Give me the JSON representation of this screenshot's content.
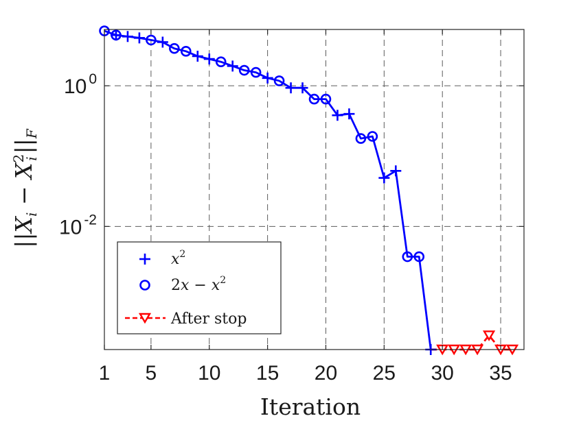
{
  "chart_data": {
    "type": "line",
    "xlabel": "Iteration",
    "ylabel": "||X_i − X_i^2||_F",
    "yscale": "log",
    "xlim": [
      1,
      37
    ],
    "ylim_log10": [
      -3.75,
      0.8
    ],
    "grid": true,
    "x_ticks": [
      1,
      5,
      10,
      15,
      20,
      25,
      30,
      35
    ],
    "x_tick_labels": [
      "1",
      "5",
      "10",
      "15",
      "20",
      "25",
      "30",
      "35"
    ],
    "y_ticks_log10": [
      0,
      -2
    ],
    "y_tick_labels": [
      {
        "base": "10",
        "exp": "0"
      },
      {
        "base": "10",
        "exp": "-2"
      }
    ],
    "legend_position": "bottom-left",
    "series": [
      {
        "name": "x^2",
        "marker": "plus",
        "color": "#0000ff",
        "x": [
          2,
          3,
          4,
          6,
          9,
          10,
          12,
          15,
          17,
          18,
          21,
          22,
          25,
          26,
          29
        ],
        "log10_y": [
          0.72,
          0.7,
          0.68,
          0.62,
          0.42,
          0.38,
          0.28,
          0.11,
          -0.03,
          -0.03,
          -0.42,
          -0.4,
          -1.31,
          -1.21,
          -3.75
        ]
      },
      {
        "name": "2x − x^2",
        "marker": "circle",
        "color": "#0000ff",
        "x": [
          1,
          2,
          5,
          7,
          8,
          11,
          13,
          14,
          16,
          19,
          20,
          23,
          24,
          27,
          28
        ],
        "log10_y": [
          0.78,
          0.72,
          0.65,
          0.53,
          0.49,
          0.34,
          0.22,
          0.19,
          0.07,
          -0.19,
          -0.19,
          -0.75,
          -0.72,
          -2.43,
          -2.43
        ]
      },
      {
        "name": "After stop",
        "marker": "triangle-down",
        "color": "#ff0000",
        "dashed": true,
        "x": [
          30,
          31,
          32,
          33,
          34,
          35,
          36
        ],
        "log10_y": [
          -3.75,
          -3.75,
          -3.75,
          -3.75,
          -3.55,
          -3.75,
          -3.75
        ]
      }
    ],
    "line_path_log10": {
      "x": [
        1,
        2,
        3,
        4,
        5,
        6,
        7,
        8,
        9,
        10,
        11,
        12,
        13,
        14,
        15,
        16,
        17,
        18,
        19,
        20,
        21,
        22,
        23,
        24,
        25,
        26,
        27,
        28,
        29
      ],
      "y": [
        0.78,
        0.72,
        0.7,
        0.68,
        0.65,
        0.62,
        0.53,
        0.49,
        0.42,
        0.38,
        0.34,
        0.28,
        0.22,
        0.19,
        0.11,
        0.07,
        -0.03,
        -0.03,
        -0.19,
        -0.19,
        -0.42,
        -0.4,
        -0.75,
        -0.72,
        -1.31,
        -1.21,
        -2.43,
        -2.43,
        -3.75
      ]
    },
    "legend": [
      {
        "label": "x²",
        "symbol": "plus"
      },
      {
        "label": "2x − x²",
        "symbol": "circle"
      },
      {
        "label": "After stop",
        "symbol": "triangle-down"
      }
    ]
  }
}
